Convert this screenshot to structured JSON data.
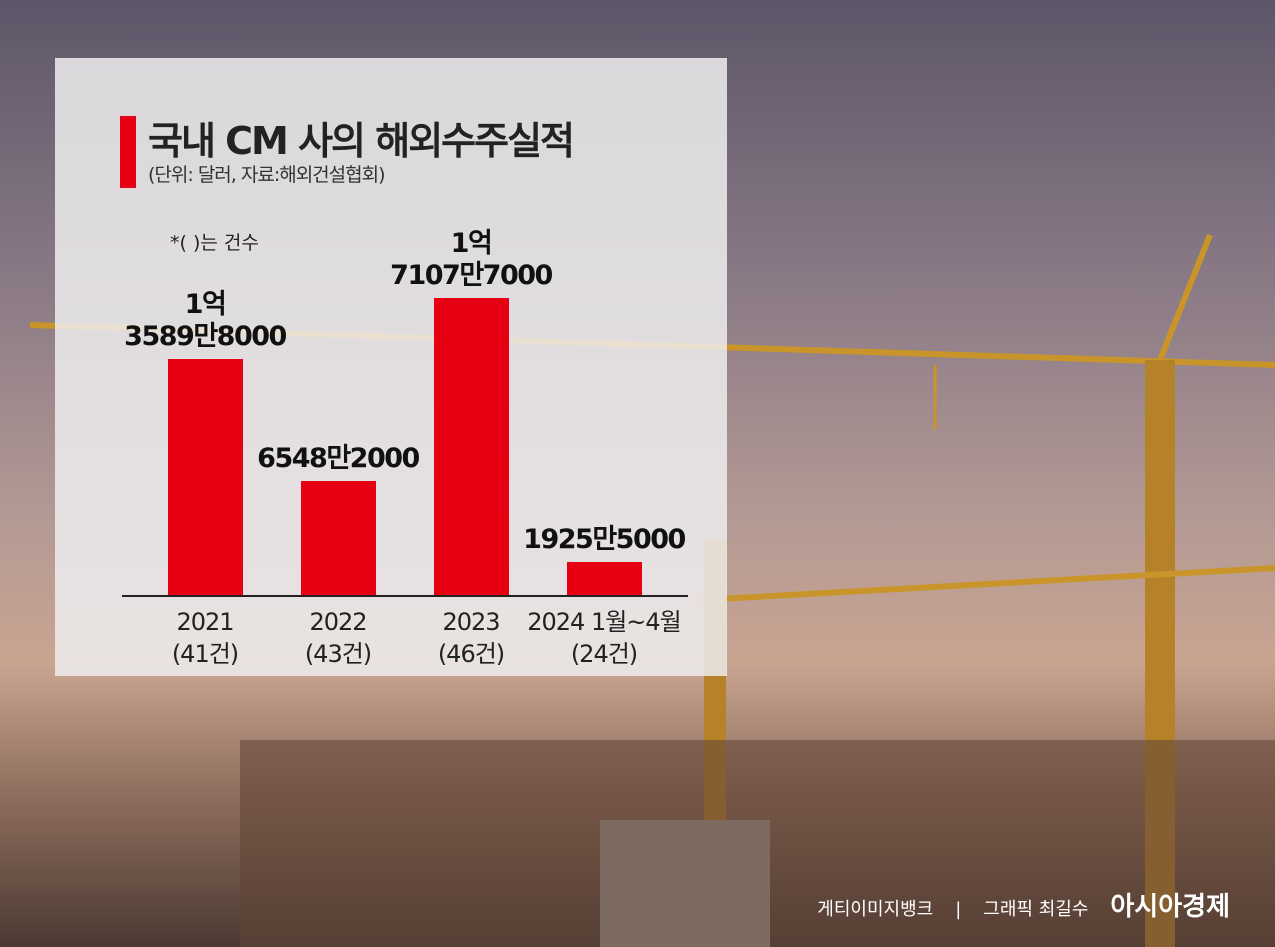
{
  "chart_data": {
    "type": "bar",
    "title": "국내 CM 사의 해외수주실적",
    "subtitle": "(단위: 달러, 자료:해외건설협회)",
    "note": "*(  )는 건수",
    "categories": [
      "2021",
      "2022",
      "2023",
      "2024 1월~4월"
    ],
    "category_notes": [
      "(41건)",
      "(43건)",
      "(46건)",
      "(24건)"
    ],
    "values": [
      135898000,
      65482000,
      171077000,
      19255000
    ],
    "value_labels": [
      "1억\n3589만8000",
      "6548만2000",
      "1억\n7107만7000",
      "1925만5000"
    ],
    "color": "#e60012"
  },
  "footer": {
    "photo_credit": "게티이미지뱅크",
    "separator": "|",
    "graphic_credit": "그래픽 최길수",
    "brand": "아시아경제"
  }
}
